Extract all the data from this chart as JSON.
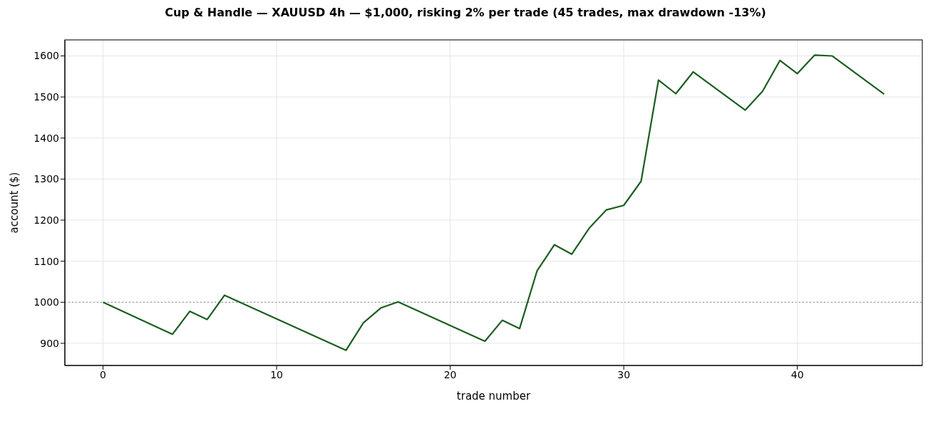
{
  "chart_data": {
    "type": "line",
    "title": "Cup & Handle — XAUUSD 4h — $1,000, risking 2% per trade (45 trades, max drawdown -13%)",
    "xlabel": "trade number",
    "ylabel": "account ($)",
    "x": [
      0,
      4,
      5,
      6,
      7,
      14,
      15,
      16,
      17,
      22,
      23,
      24,
      25,
      26,
      27,
      28,
      29,
      30,
      31,
      32,
      33,
      34,
      37,
      38,
      39,
      40,
      41,
      42,
      45
    ],
    "series": [
      {
        "color": "#1b5e20",
        "values": [
          1000,
          922,
          978,
          958,
          1017,
          883,
          950,
          986,
          1001,
          905,
          956,
          936,
          1076,
          1140,
          1117,
          1180,
          1225,
          1236,
          1295,
          1541,
          1508,
          1561,
          1468,
          1514,
          1589,
          1557,
          1602,
          1600,
          1507
        ]
      }
    ],
    "xlim": [
      -2.2,
      47.2
    ],
    "xticks": [
      0,
      10,
      20,
      30,
      40
    ],
    "ylim": [
      846,
      1639
    ],
    "yticks": [
      900,
      1000,
      1100,
      1200,
      1300,
      1400,
      1500,
      1600
    ],
    "ref_lines": [
      {
        "axis": "y",
        "value": 1000,
        "color": "#888888",
        "line_style": "dotted"
      }
    ],
    "grid": true,
    "marker": "none",
    "line_style": "solid"
  }
}
